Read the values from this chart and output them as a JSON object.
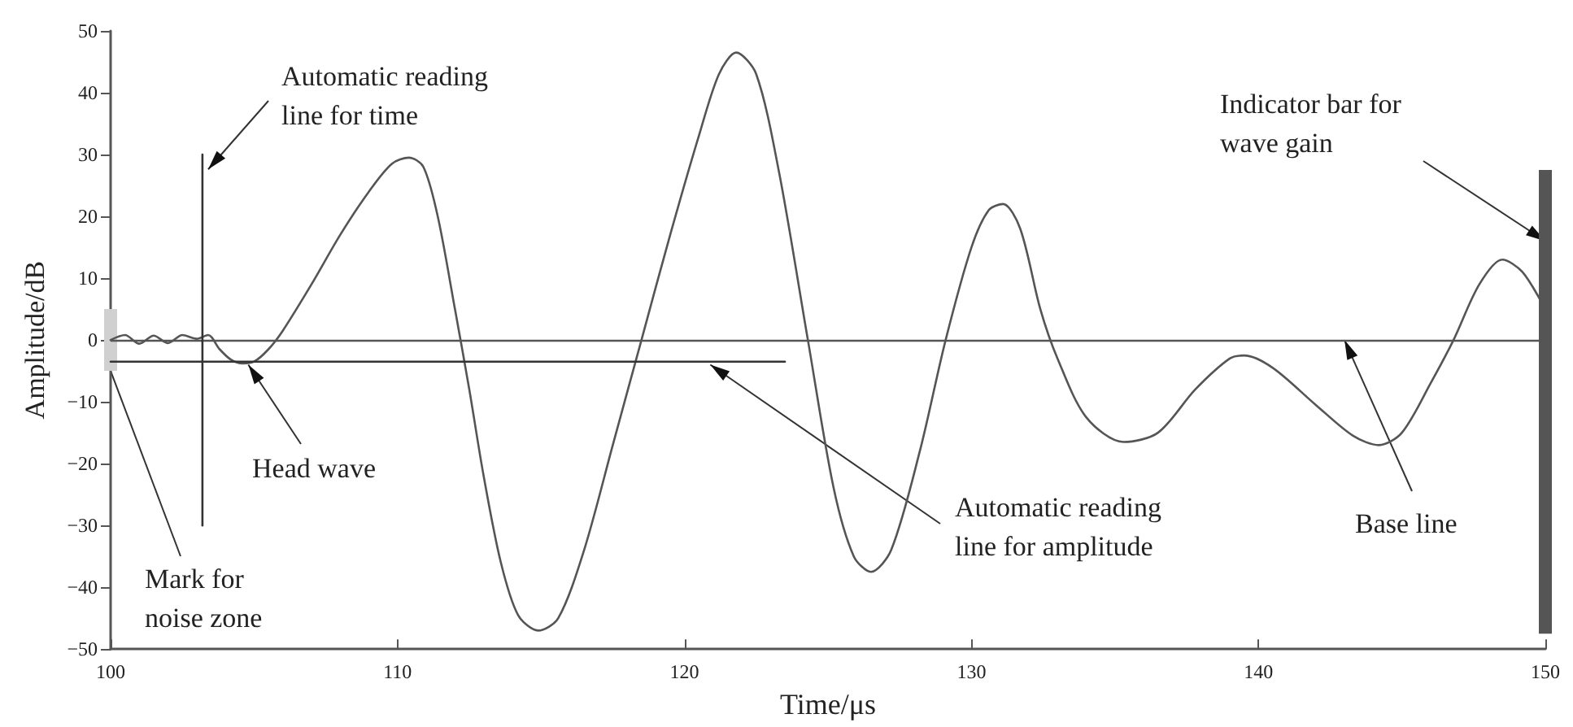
{
  "chart_data": {
    "type": "line",
    "xlabel": "Time/μs",
    "ylabel": "Amplitude/dB",
    "xlim": [
      100,
      150
    ],
    "xticks": [
      100,
      110,
      120,
      130,
      140,
      150
    ],
    "ylim": [
      -50,
      50
    ],
    "yticks": [
      -50,
      -40,
      -30,
      -20,
      -10,
      0,
      10,
      20,
      30,
      40,
      50
    ],
    "grid": false,
    "marker": "none",
    "line_style": "solid",
    "x": [
      100,
      100.5,
      101,
      101.5,
      102,
      102.5,
      103,
      103.4,
      103.8,
      104.2,
      104.6,
      105,
      105.5,
      106,
      107,
      108,
      109,
      109.8,
      110.4,
      110.9,
      111.4,
      112,
      112.5,
      113,
      113.6,
      114.2,
      114.9,
      115.6,
      116.5,
      117.5,
      118.5,
      119.5,
      120.5,
      121.2,
      121.8,
      122.5,
      123.3,
      124.3,
      125.2,
      125.9,
      126.5,
      127.2,
      128.2,
      129.1,
      130,
      130.6,
      131.1,
      131.7,
      132.4,
      133,
      134,
      135.3,
      136.5,
      137.8,
      139,
      139.5,
      140.5,
      142,
      143.3,
      144.2,
      145,
      146,
      146.8,
      147.7,
      148.5,
      149.2,
      150
    ],
    "series": [
      {
        "color": "#555555",
        "values": [
          0,
          0.8,
          -0.6,
          0.7,
          -0.5,
          0.8,
          0.2,
          0.8,
          -1.5,
          -3.2,
          -3.8,
          -3.5,
          -1.5,
          1.5,
          9,
          17,
          24,
          28.5,
          29.5,
          28,
          20,
          5,
          -8,
          -22,
          -36,
          -44.5,
          -47,
          -45,
          -34,
          -17,
          0,
          17,
          33,
          43,
          46.5,
          43,
          27,
          0,
          -24,
          -35,
          -37.5,
          -34,
          -18,
          0,
          15,
          21,
          22,
          18,
          5,
          -3,
          -12.5,
          -16.5,
          -15,
          -8,
          -3,
          -2.5,
          -4.5,
          -10.5,
          -15.5,
          -17,
          -15,
          -7,
          0,
          9,
          13,
          11,
          5
        ]
      },
      {
        "type": "line",
        "color": "#333333",
        "x": [
          103.2,
          103.2
        ],
        "values": [
          -30,
          30
        ]
      },
      {
        "type": "line",
        "color": "#333333",
        "x": [
          100,
          123.5
        ],
        "values": [
          -3.5,
          -3.5
        ]
      },
      {
        "type": "bar",
        "color": "#d0d0d0",
        "x": [
          100
        ],
        "base": [
          -5
        ],
        "values": [
          10
        ]
      },
      {
        "type": "bar",
        "color": "#555555",
        "x": [
          150
        ],
        "base": [
          -47.5
        ],
        "values": [
          75
        ]
      }
    ],
    "ref_lines": [
      {
        "axis": "y",
        "value": 0,
        "color": "#555555"
      }
    ],
    "annotations": [
      {
        "text": "Automatic reading\nline for time",
        "x": 103.4,
        "y": 27.6
      },
      {
        "text": "Head wave",
        "x": 104.8,
        "y": -4
      },
      {
        "text": "Mark for\nnoise zone",
        "x": 100,
        "y": -5
      },
      {
        "text": "Automatic reading\nline for amplitude",
        "x": 120.9,
        "y": -4
      },
      {
        "text": "Base line",
        "x": 143,
        "y": 0
      },
      {
        "text": "Indicator bar for\nwave gain",
        "x": 150,
        "y": 16
      }
    ]
  }
}
